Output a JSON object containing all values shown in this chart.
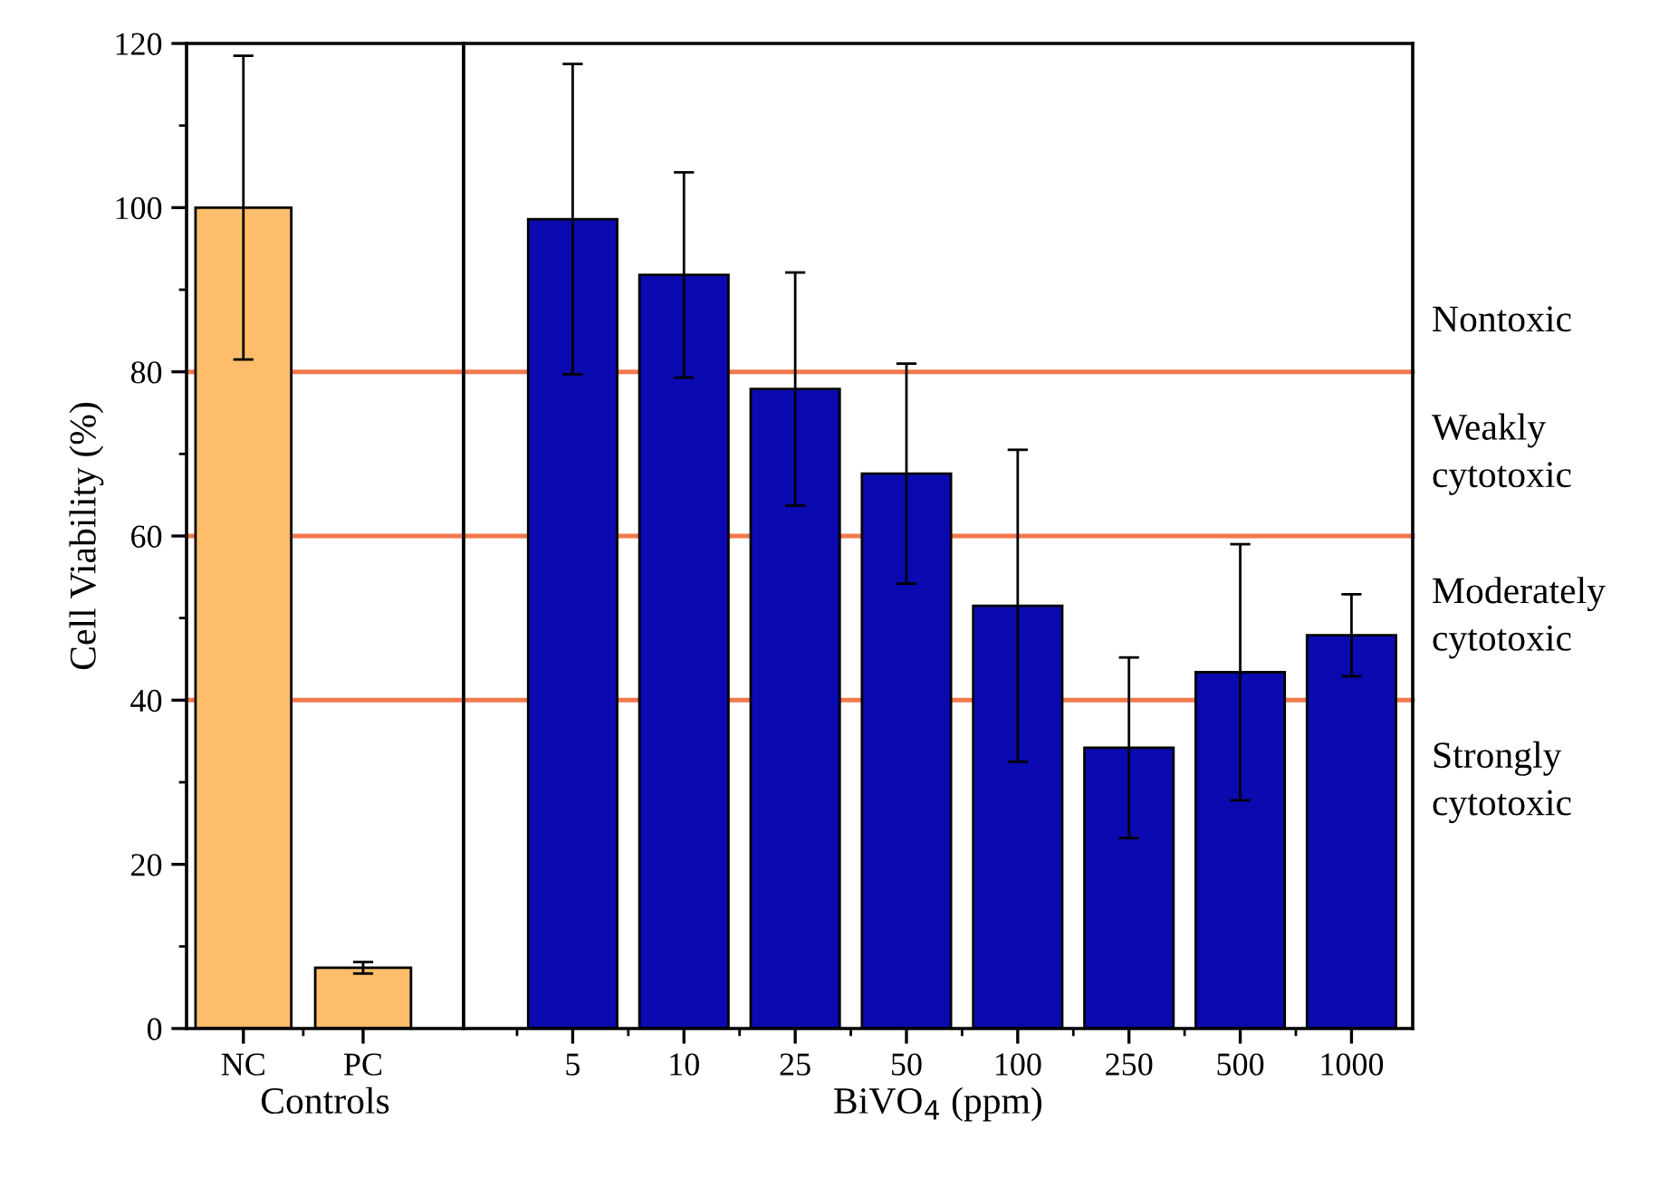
{
  "chart_data": [
    {
      "type": "bar",
      "categories": [
        "NC",
        "PC"
      ],
      "values": [
        100,
        7.4
      ],
      "errors": [
        18.5,
        0.7
      ],
      "colors": [
        "#fdbd6b",
        "#fdbd6b"
      ],
      "ylim": [
        0,
        120
      ],
      "yticks": [
        0,
        20,
        40,
        60,
        80,
        100,
        120
      ],
      "ylabel": "Cell Viability (%)",
      "xlabel": "Controls",
      "ref_lines": [
        {
          "axis": "y",
          "value": 80,
          "color": "#f2784b"
        },
        {
          "axis": "y",
          "value": 60,
          "color": "#f2784b"
        },
        {
          "axis": "y",
          "value": 40,
          "color": "#f2784b"
        }
      ]
    },
    {
      "type": "bar",
      "categories": [
        "5",
        "10",
        "25",
        "50",
        "100",
        "250",
        "500",
        "1000"
      ],
      "values": [
        98.6,
        91.8,
        77.9,
        67.6,
        51.5,
        34.2,
        43.4,
        47.9
      ],
      "errors": [
        18.9,
        12.5,
        14.2,
        13.4,
        19,
        11,
        15.6,
        5
      ],
      "color": "#0a0ab0",
      "ylim": [
        0,
        120
      ],
      "tick_labels": "x",
      "xlabel": "BiVO$_{4}$ (ppm)",
      "ref_lines": [
        {
          "axis": "y",
          "value": 80,
          "color": "#f2784b"
        },
        {
          "axis": "y",
          "value": 60,
          "color": "#f2784b"
        },
        {
          "axis": "y",
          "value": 40,
          "color": "#f2784b"
        }
      ],
      "annotations": [
        "Nontoxic",
        "Weakly\ncytotoxic",
        "Moderately\ncytotoxic",
        "Strongly\ncytotoxic"
      ]
    }
  ]
}
